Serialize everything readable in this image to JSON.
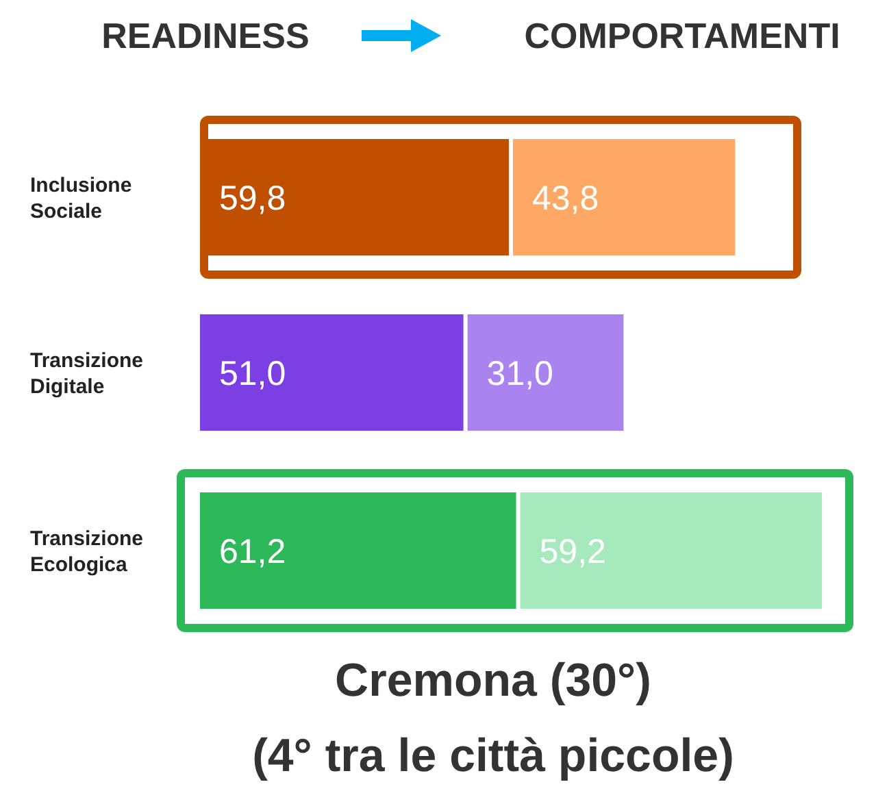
{
  "chart_data": {
    "type": "bar",
    "orientation": "horizontal",
    "stacked": true,
    "title": "Cremona (30°)",
    "subtitle": "(4° tra le città piccole)",
    "categories": [
      "Inclusione Sociale",
      "Transizione Digitale",
      "Transizione Ecologica"
    ],
    "series": [
      {
        "name": "READINESS",
        "colors": [
          "#c05000",
          "#7c3fe4",
          "#2db85a"
        ],
        "values": [
          59.8,
          51.0,
          61.2
        ],
        "value_labels": [
          "59,8",
          "51,0",
          "61,2"
        ]
      },
      {
        "name": "COMPORTAMENTI",
        "colors": [
          "#ffa866",
          "#a984f0",
          "#a6e9bc"
        ],
        "values": [
          43.8,
          31.0,
          59.2
        ],
        "value_labels": [
          "43,8",
          "31,0",
          "59,2"
        ]
      }
    ],
    "legend": "top"
  }
}
